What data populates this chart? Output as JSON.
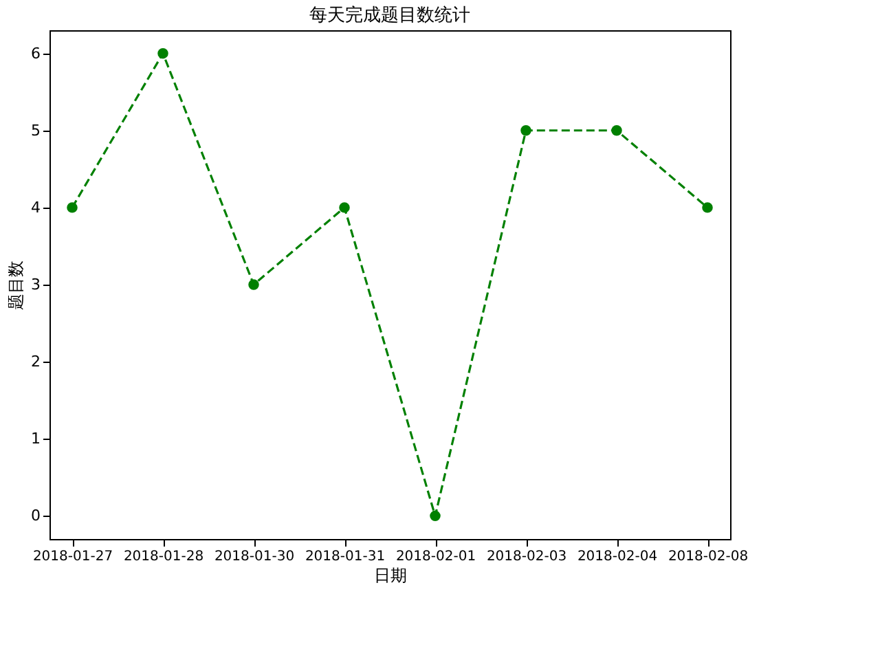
{
  "chart_data": {
    "type": "line",
    "title": "每天完成题目数统计",
    "xlabel": "日期",
    "ylabel": "题目数",
    "categories": [
      "2018-01-27",
      "2018-01-28",
      "2018-01-30",
      "2018-01-31",
      "2018-02-01",
      "2018-02-03",
      "2018-02-04",
      "2018-02-08"
    ],
    "series": [
      {
        "color": "#008000",
        "values": [
          4,
          6,
          3,
          4,
          0,
          5,
          5,
          4
        ]
      }
    ],
    "ylim": [
      -0.3,
      6.3
    ],
    "yticks": [
      0,
      1,
      2,
      3,
      4,
      5,
      6
    ],
    "grid": false,
    "marker": "circle",
    "line_style": "dashed"
  }
}
